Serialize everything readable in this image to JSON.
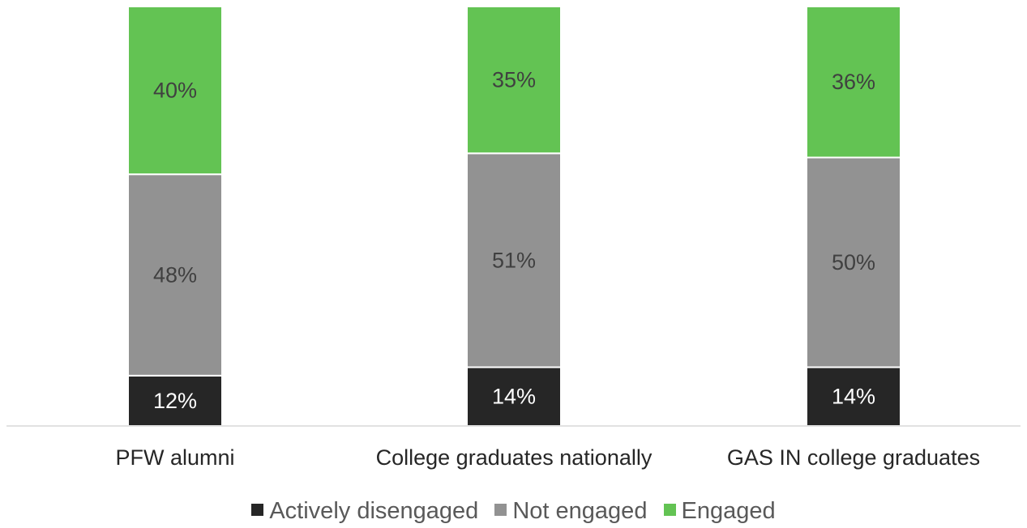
{
  "chart_data": {
    "type": "bar",
    "stacked": true,
    "normalized": true,
    "categories": [
      "PFW alumni",
      "College graduates nationally",
      "GAS IN college graduates"
    ],
    "series": [
      {
        "name": "Actively disengaged",
        "values": [
          12,
          14,
          14
        ],
        "labels": [
          "12%",
          "14%",
          "14%"
        ],
        "color": "#262626",
        "label_color": "#ffffff"
      },
      {
        "name": "Not engaged",
        "values": [
          48,
          51,
          50
        ],
        "labels": [
          "48%",
          "51%",
          "50%"
        ],
        "color": "#929292",
        "label_color": "#404040"
      },
      {
        "name": "Engaged",
        "values": [
          40,
          35,
          36
        ],
        "labels": [
          "40%",
          "35%",
          "36%"
        ],
        "color": "#63c353",
        "label_color": "#404040"
      }
    ],
    "ylim": [
      0,
      100
    ],
    "grid": false,
    "legend_position": "bottom"
  }
}
